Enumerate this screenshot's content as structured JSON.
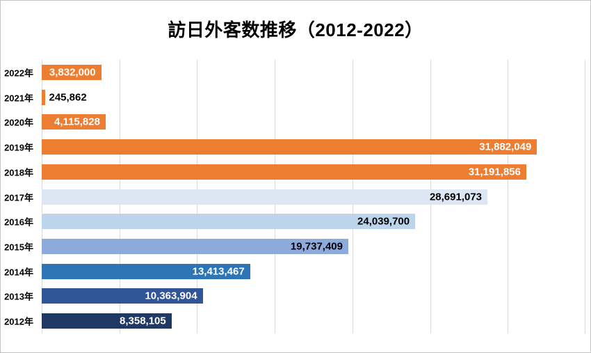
{
  "title": "訪日外客数推移（2012-2022）",
  "colors": {
    "background": "#FFFFFF",
    "canvas_border": "#C3C3C3",
    "gridline": "#D9D9D9",
    "title_text": "#000000",
    "category_text": "#000000",
    "orange_accent": "#ED7D31",
    "navy_accent": "#1F3864"
  },
  "chart_data": {
    "type": "bar",
    "orientation": "horizontal",
    "title": "訪日外客数推移（2012-2022）",
    "xlabel": "",
    "ylabel": "",
    "categories": [
      "2022年",
      "2021年",
      "2020年",
      "2019年",
      "2018年",
      "2017年",
      "2016年",
      "2015年",
      "2014年",
      "2013年",
      "2012年"
    ],
    "values": [
      3832000,
      245862,
      4115828,
      31882049,
      31191856,
      28691073,
      24039700,
      19737409,
      13413467,
      10363904,
      8358105
    ],
    "value_labels": [
      "3,832,000",
      "245,862",
      "4,115,828",
      "31,882,049",
      "31,191,856",
      "28,691,073",
      "24,039,700",
      "19,737,409",
      "13,413,467",
      "10,363,904",
      "8,358,105"
    ],
    "bar_colors": [
      "#ED7D31",
      "#ED7D31",
      "#ED7D31",
      "#ED7D31",
      "#ED7D31",
      "#DCE7F3",
      "#BCD5EC",
      "#8EA9DB",
      "#2E75B6",
      "#2F5597",
      "#1F3864"
    ],
    "label_colors": [
      "#FFFFFF",
      "#000000",
      "#FFFFFF",
      "#FFFFFF",
      "#FFFFFF",
      "#000000",
      "#000000",
      "#000000",
      "#FFFFFF",
      "#FFFFFF",
      "#FFFFFF"
    ],
    "label_positions": [
      "inside",
      "outside",
      "inside",
      "inside",
      "inside",
      "inside",
      "inside",
      "inside",
      "inside",
      "inside",
      "inside"
    ],
    "xlim": [
      0,
      35000000
    ],
    "gridline_interval": 5000000,
    "grid": true,
    "x_tick_labels_shown": false,
    "legend": false
  }
}
